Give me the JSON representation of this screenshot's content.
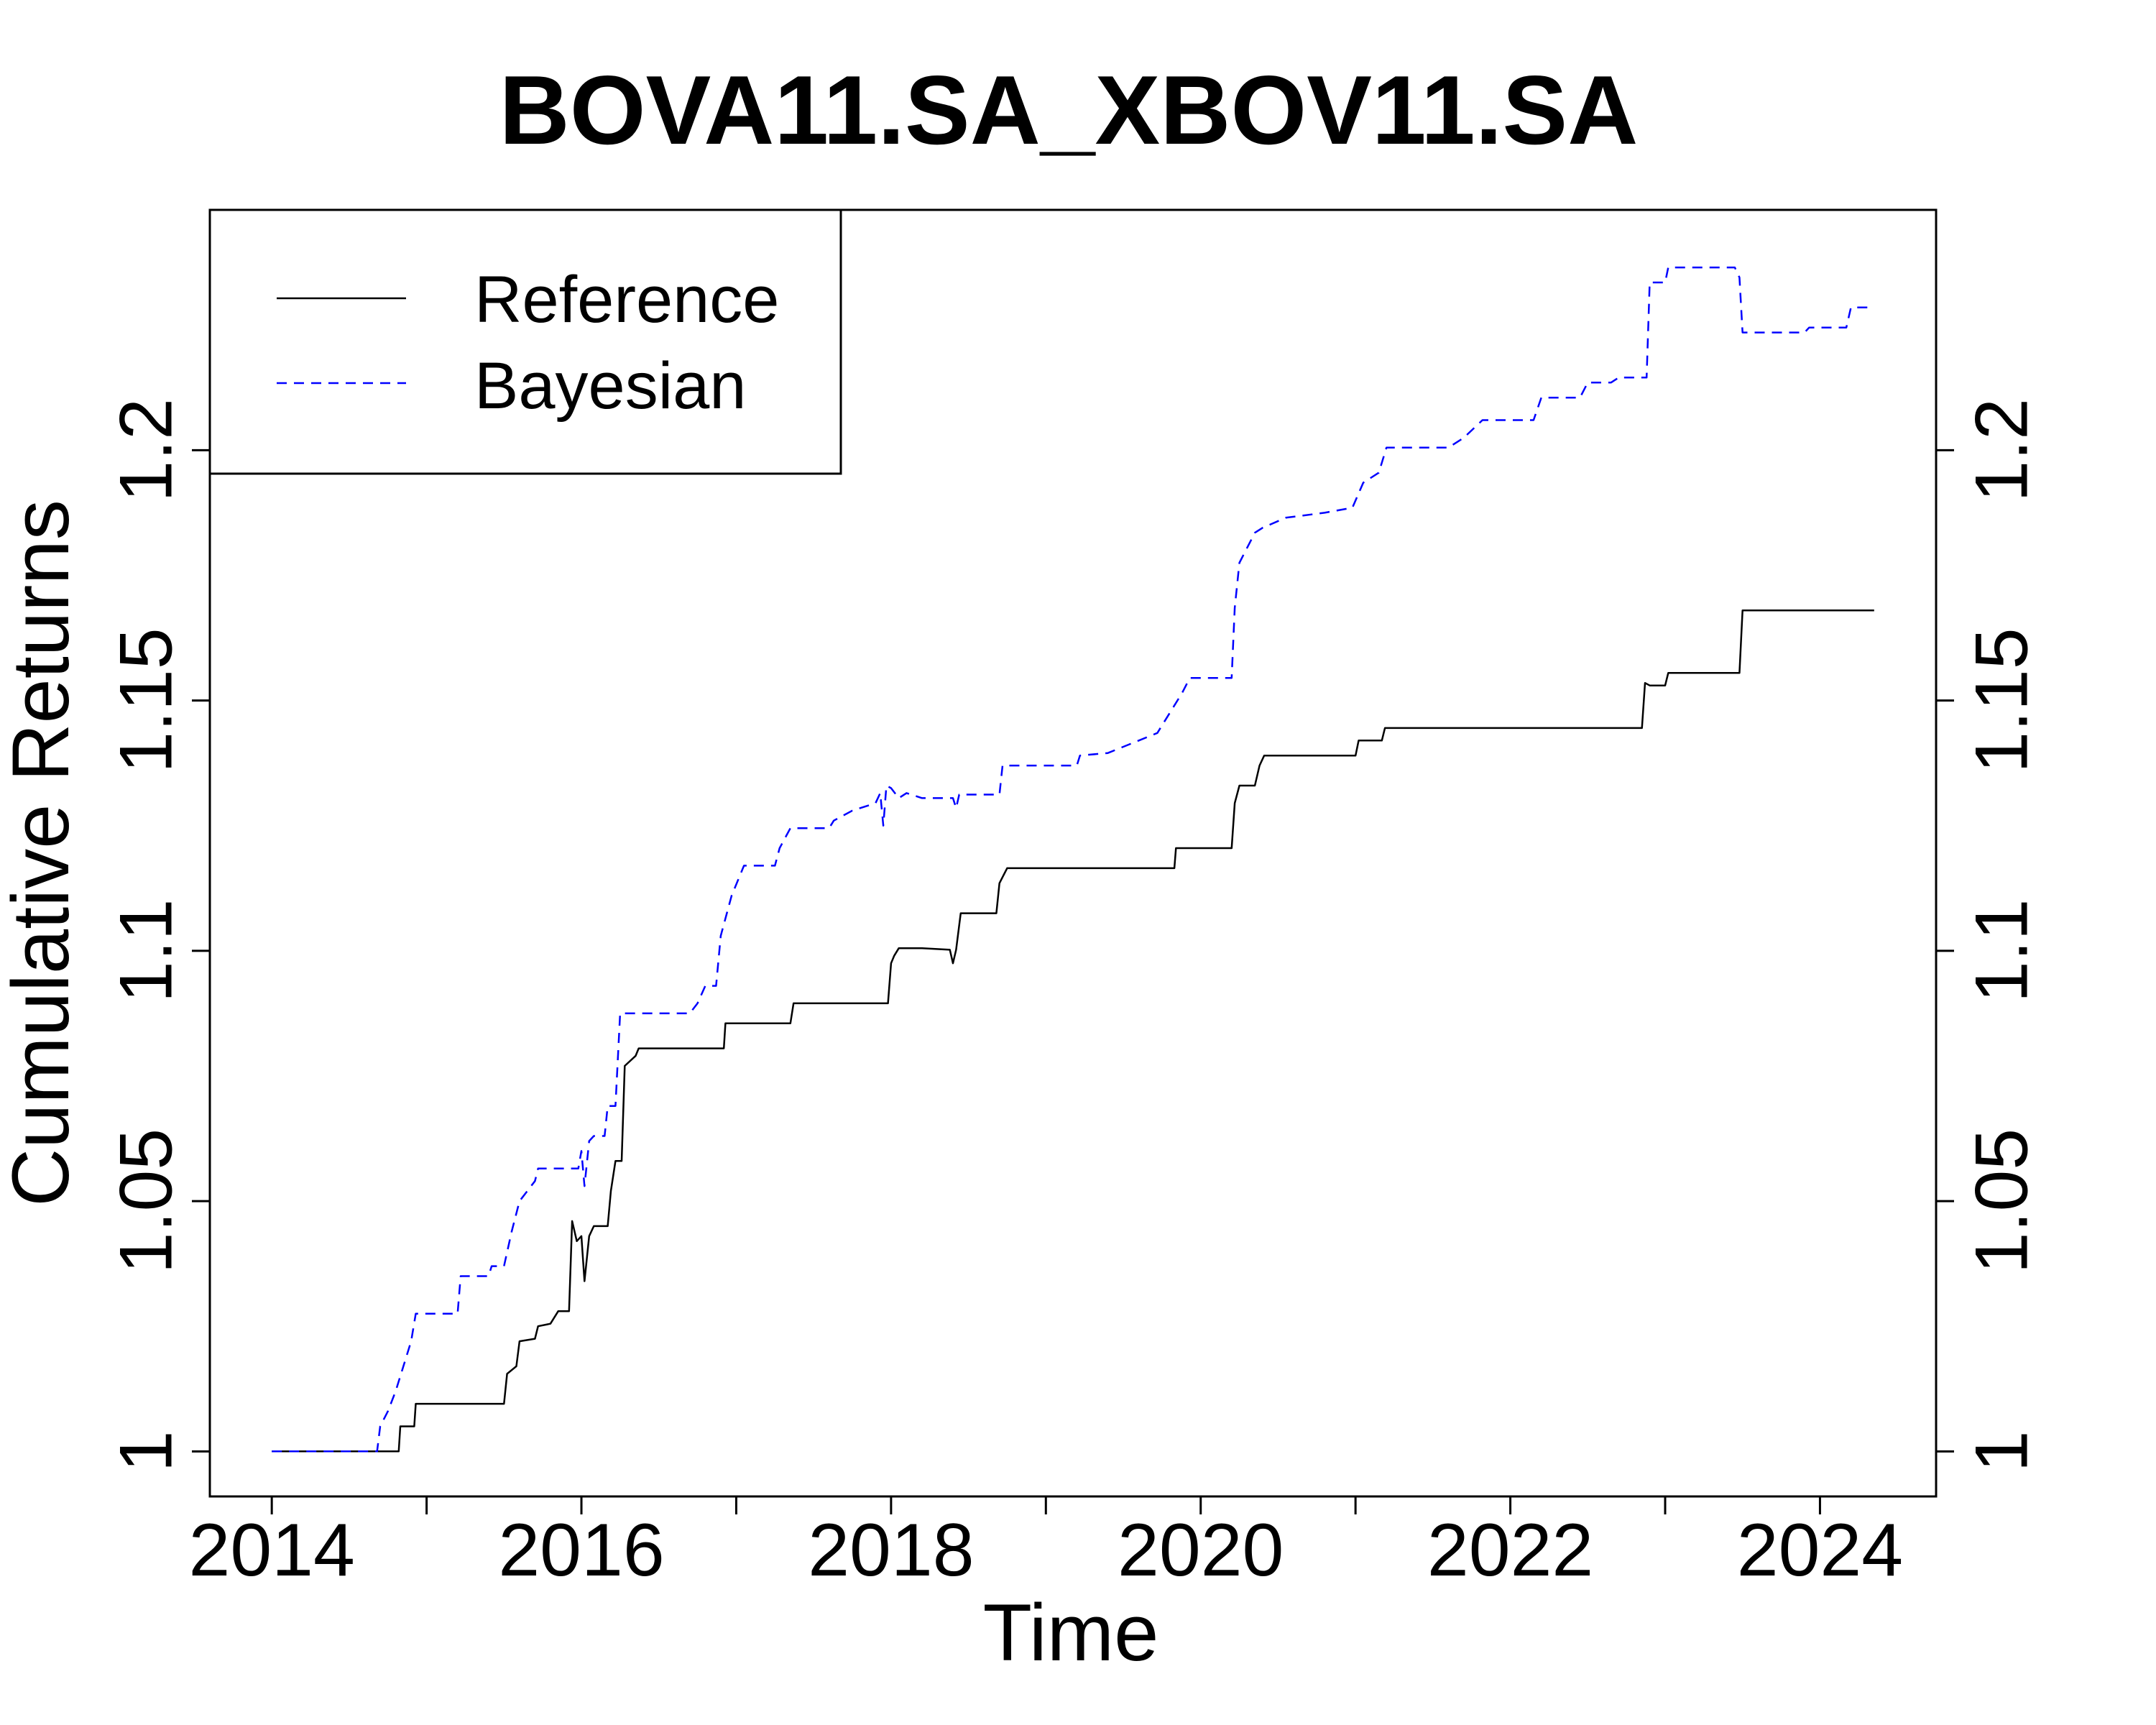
{
  "chart_data": {
    "type": "line",
    "title": "BOVA11.SA_XBOV11.SA",
    "xlabel": "Time",
    "ylabel": "Cumulative Returns",
    "xlim": [
      2013.6,
      2024.75
    ],
    "ylim": [
      0.991,
      1.248
    ],
    "x_ticks": [
      2014,
      2015,
      2016,
      2017,
      2018,
      2019,
      2020,
      2021,
      2022,
      2023,
      2024
    ],
    "x_tick_labels": [
      "2014",
      "2016",
      "2018",
      "2020",
      "2022",
      "2024"
    ],
    "x_tick_label_positions": [
      2014,
      2016,
      2018,
      2020,
      2022,
      2024
    ],
    "y_ticks": [
      1.0,
      1.05,
      1.1,
      1.15,
      1.2
    ],
    "y_tick_labels": [
      "1",
      "1.05",
      "1.1",
      "1.15",
      "1.2"
    ],
    "legend": {
      "position": "top-left"
    },
    "series": [
      {
        "name": "Reference",
        "color": "#000000",
        "style": "solid",
        "points": [
          [
            2014.0,
            1.0
          ],
          [
            2014.82,
            1.0
          ],
          [
            2014.83,
            1.005
          ],
          [
            2014.92,
            1.005
          ],
          [
            2014.93,
            1.0095
          ],
          [
            2015.5,
            1.0095
          ],
          [
            2015.52,
            1.0155
          ],
          [
            2015.58,
            1.017
          ],
          [
            2015.6,
            1.022
          ],
          [
            2015.7,
            1.0225
          ],
          [
            2015.72,
            1.025
          ],
          [
            2015.8,
            1.0255
          ],
          [
            2015.85,
            1.028
          ],
          [
            2015.92,
            1.028
          ],
          [
            2015.94,
            1.046
          ],
          [
            2015.97,
            1.042
          ],
          [
            2016.0,
            1.043
          ],
          [
            2016.02,
            1.034
          ],
          [
            2016.05,
            1.043
          ],
          [
            2016.08,
            1.045
          ],
          [
            2016.17,
            1.045
          ],
          [
            2016.19,
            1.052
          ],
          [
            2016.22,
            1.058
          ],
          [
            2016.26,
            1.058
          ],
          [
            2016.28,
            1.077
          ],
          [
            2016.35,
            1.079
          ],
          [
            2016.37,
            1.0805
          ],
          [
            2016.92,
            1.0805
          ],
          [
            2016.93,
            1.0855
          ],
          [
            2017.35,
            1.0855
          ],
          [
            2017.37,
            1.0895
          ],
          [
            2017.98,
            1.0895
          ],
          [
            2018.0,
            1.0975
          ],
          [
            2018.02,
            1.099
          ],
          [
            2018.05,
            1.1005
          ],
          [
            2018.2,
            1.1005
          ],
          [
            2018.38,
            1.1002
          ],
          [
            2018.4,
            1.0975
          ],
          [
            2018.42,
            1.1002
          ],
          [
            2018.45,
            1.1075
          ],
          [
            2018.68,
            1.1075
          ],
          [
            2018.7,
            1.1135
          ],
          [
            2018.75,
            1.1165
          ],
          [
            2019.83,
            1.1165
          ],
          [
            2019.84,
            1.1205
          ],
          [
            2020.2,
            1.1205
          ],
          [
            2020.22,
            1.1295
          ],
          [
            2020.25,
            1.133
          ],
          [
            2020.35,
            1.133
          ],
          [
            2020.38,
            1.137
          ],
          [
            2020.41,
            1.139
          ],
          [
            2021.0,
            1.139
          ],
          [
            2021.02,
            1.142
          ],
          [
            2021.17,
            1.142
          ],
          [
            2021.19,
            1.1445
          ],
          [
            2022.85,
            1.1445
          ],
          [
            2022.87,
            1.1535
          ],
          [
            2022.9,
            1.153
          ],
          [
            2023.0,
            1.153
          ],
          [
            2023.02,
            1.1555
          ],
          [
            2023.48,
            1.1555
          ],
          [
            2023.5,
            1.168
          ],
          [
            2024.35,
            1.168
          ]
        ]
      },
      {
        "name": "Bayesian",
        "color": "#0000ff",
        "style": "dashed",
        "points": [
          [
            2014.0,
            1.0
          ],
          [
            2014.68,
            1.0
          ],
          [
            2014.7,
            1.005
          ],
          [
            2014.75,
            1.008
          ],
          [
            2014.8,
            1.012
          ],
          [
            2014.85,
            1.017
          ],
          [
            2014.9,
            1.022
          ],
          [
            2014.93,
            1.0275
          ],
          [
            2015.2,
            1.0275
          ],
          [
            2015.22,
            1.035
          ],
          [
            2015.4,
            1.035
          ],
          [
            2015.42,
            1.037
          ],
          [
            2015.5,
            1.037
          ],
          [
            2015.55,
            1.044
          ],
          [
            2015.6,
            1.05
          ],
          [
            2015.7,
            1.054
          ],
          [
            2015.72,
            1.0565
          ],
          [
            2015.98,
            1.0565
          ],
          [
            2016.0,
            1.06
          ],
          [
            2016.02,
            1.053
          ],
          [
            2016.05,
            1.062
          ],
          [
            2016.08,
            1.063
          ],
          [
            2016.15,
            1.063
          ],
          [
            2016.17,
            1.069
          ],
          [
            2016.22,
            1.069
          ],
          [
            2016.25,
            1.0875
          ],
          [
            2016.7,
            1.0875
          ],
          [
            2016.75,
            1.0895
          ],
          [
            2016.8,
            1.093
          ],
          [
            2016.87,
            1.093
          ],
          [
            2016.9,
            1.103
          ],
          [
            2016.97,
            1.111
          ],
          [
            2017.05,
            1.117
          ],
          [
            2017.25,
            1.117
          ],
          [
            2017.28,
            1.1205
          ],
          [
            2017.35,
            1.1245
          ],
          [
            2017.6,
            1.1245
          ],
          [
            2017.63,
            1.126
          ],
          [
            2017.75,
            1.128
          ],
          [
            2017.9,
            1.1295
          ],
          [
            2017.93,
            1.1315
          ],
          [
            2017.95,
            1.125
          ],
          [
            2017.97,
            1.133
          ],
          [
            2018.0,
            1.1325
          ],
          [
            2018.05,
            1.1305
          ],
          [
            2018.1,
            1.1315
          ],
          [
            2018.2,
            1.1305
          ],
          [
            2018.4,
            1.1305
          ],
          [
            2018.42,
            1.1285
          ],
          [
            2018.44,
            1.1312
          ],
          [
            2018.7,
            1.1312
          ],
          [
            2018.72,
            1.137
          ],
          [
            2019.2,
            1.137
          ],
          [
            2019.22,
            1.139
          ],
          [
            2019.4,
            1.1395
          ],
          [
            2019.6,
            1.142
          ],
          [
            2019.72,
            1.1435
          ],
          [
            2019.8,
            1.1475
          ],
          [
            2019.88,
            1.1515
          ],
          [
            2019.93,
            1.1545
          ],
          [
            2020.2,
            1.1545
          ],
          [
            2020.22,
            1.1685
          ],
          [
            2020.25,
            1.1775
          ],
          [
            2020.35,
            1.1835
          ],
          [
            2020.4,
            1.1845
          ],
          [
            2020.55,
            1.1865
          ],
          [
            2020.8,
            1.1875
          ],
          [
            2020.98,
            1.1885
          ],
          [
            2021.05,
            1.1935
          ],
          [
            2021.15,
            1.1955
          ],
          [
            2021.2,
            1.2005
          ],
          [
            2021.6,
            1.2005
          ],
          [
            2021.7,
            1.2025
          ],
          [
            2021.82,
            1.206
          ],
          [
            2022.15,
            1.206
          ],
          [
            2022.2,
            1.2105
          ],
          [
            2022.45,
            1.2105
          ],
          [
            2022.5,
            1.2135
          ],
          [
            2022.65,
            1.2135
          ],
          [
            2022.7,
            1.2145
          ],
          [
            2022.88,
            1.2145
          ],
          [
            2022.9,
            1.2335
          ],
          [
            2023.0,
            1.2335
          ],
          [
            2023.02,
            1.2365
          ],
          [
            2023.45,
            1.2365
          ],
          [
            2023.48,
            1.2345
          ],
          [
            2023.5,
            1.2235
          ],
          [
            2023.9,
            1.2235
          ],
          [
            2023.93,
            1.2245
          ],
          [
            2024.17,
            1.2245
          ],
          [
            2024.2,
            1.2285
          ],
          [
            2024.35,
            1.2285
          ]
        ]
      }
    ]
  }
}
